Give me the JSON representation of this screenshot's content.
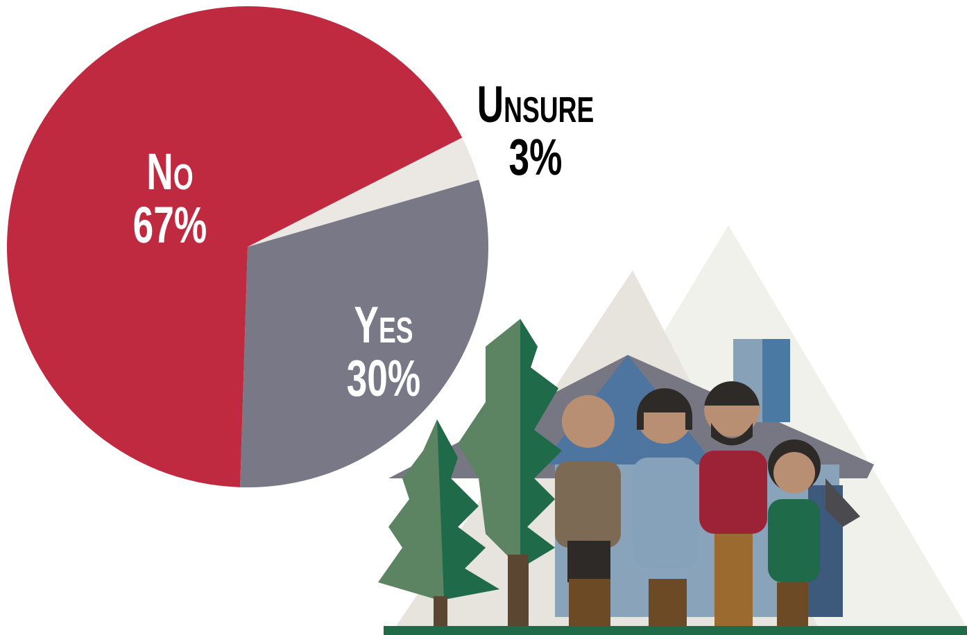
{
  "chart_data": {
    "type": "pie",
    "categories": [
      "Unsure",
      "Yes",
      "No"
    ],
    "values": [
      3,
      30,
      67
    ],
    "value_labels": [
      "3%",
      "30%",
      "67%"
    ],
    "colors": [
      "#ebe8e3",
      "#797886",
      "#c02a41"
    ]
  }
}
